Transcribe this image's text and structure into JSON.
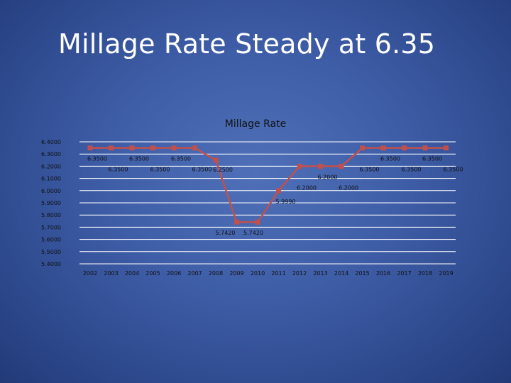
{
  "slide": {
    "title": "Millage Rate Steady at 6.35"
  },
  "chart_data": {
    "type": "line",
    "title": "Millage Rate",
    "xlabel": "",
    "ylabel": "",
    "categories": [
      "2002",
      "2003",
      "2004",
      "2005",
      "2006",
      "2007",
      "2008",
      "2009",
      "2010",
      "2011",
      "2012",
      "2013",
      "2014",
      "2015",
      "2016",
      "2017",
      "2018",
      "2019"
    ],
    "series": [
      {
        "values": [
          6.35,
          6.35,
          6.35,
          6.35,
          6.35,
          6.35,
          6.25,
          5.742,
          5.742,
          5.999,
          6.2,
          6.2,
          6.2,
          6.35,
          6.35,
          6.35,
          6.35,
          6.35
        ]
      }
    ],
    "data_labels": [
      "6.3500",
      "6.3500",
      "6.3500",
      "6.3500",
      "6.3500",
      "6.3500",
      "6.2500",
      "5.7420",
      "5.7420",
      "5.9990",
      "6.2000",
      "6.2000",
      "6.2000",
      "6.3500",
      "6.3500",
      "6.3500",
      "6.3500",
      "6.3500"
    ],
    "ylim": [
      5.4,
      6.4
    ],
    "yticks": [
      5.4,
      5.5,
      5.6,
      5.7,
      5.8,
      5.9,
      6.0,
      6.1,
      6.2,
      6.3,
      6.4
    ],
    "ytick_labels": [
      "5.4000",
      "5.5000",
      "5.6000",
      "5.7000",
      "5.8000",
      "5.9000",
      "6.0000",
      "6.1000",
      "6.2000",
      "6.3000",
      "6.4000"
    ],
    "grid": true,
    "legend": "none",
    "colors": {
      "line": "#c0504d",
      "grid": "#ffffff"
    }
  }
}
